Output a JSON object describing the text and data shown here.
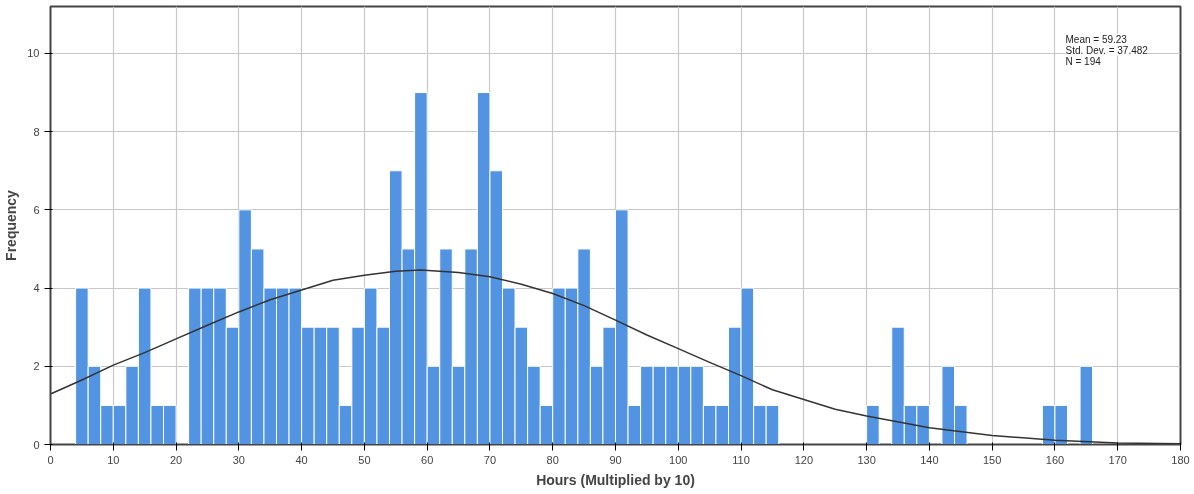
{
  "chart_data": {
    "type": "histogram",
    "xlabel": "Hours (Multiplied by 10)",
    "ylabel": "Frequency",
    "bins": [
      4,
      6,
      8,
      10,
      12,
      14,
      16,
      18,
      20,
      22,
      24,
      26,
      28,
      30,
      32,
      34,
      36,
      38,
      40,
      42,
      44,
      46,
      48,
      50,
      52,
      54,
      56,
      58,
      60,
      62,
      64,
      66,
      68,
      70,
      72,
      74,
      76,
      78,
      80,
      82,
      84,
      86,
      88,
      90,
      92,
      94,
      96,
      98,
      100,
      102,
      104,
      106,
      108,
      110,
      112,
      114,
      116,
      118,
      120,
      122,
      124,
      126,
      128,
      130,
      132,
      134,
      136,
      138,
      140,
      142,
      144,
      146,
      148,
      150,
      152,
      154,
      156,
      158,
      160,
      162,
      164,
      166
    ],
    "values": [
      4,
      2,
      1,
      1,
      2,
      4,
      1,
      1,
      0,
      4,
      4,
      4,
      3,
      6,
      5,
      4,
      4,
      4,
      3,
      3,
      3,
      1,
      3,
      4,
      3,
      7,
      5,
      9,
      2,
      5,
      2,
      5,
      9,
      7,
      4,
      3,
      2,
      1,
      4,
      4,
      5,
      2,
      3,
      6,
      1,
      2,
      2,
      2,
      2,
      2,
      1,
      1,
      3,
      4,
      1,
      1,
      0,
      0,
      0,
      0,
      0,
      0,
      0,
      1,
      0,
      3,
      1,
      1,
      0,
      2,
      1,
      0,
      0,
      0,
      0,
      0,
      0,
      1,
      1,
      0,
      2
    ],
    "color": "#5294e2",
    "series": [
      {
        "type": "line",
        "color": "#333333",
        "x": [
          0,
          5,
          10,
          15,
          20,
          25,
          30,
          35,
          40,
          45,
          50,
          55,
          59,
          65,
          70,
          75,
          80,
          85,
          90,
          95,
          100,
          105,
          110,
          115,
          120,
          125,
          130,
          140,
          150,
          160,
          170,
          180
        ],
        "values": [
          1.29,
          1.65,
          2.03,
          2.35,
          2.7,
          3.05,
          3.39,
          3.7,
          3.95,
          4.2,
          4.33,
          4.43,
          4.46,
          4.4,
          4.29,
          4.1,
          3.86,
          3.55,
          3.18,
          2.8,
          2.45,
          2.1,
          1.76,
          1.4,
          1.15,
          0.9,
          0.73,
          0.43,
          0.23,
          0.11,
          0.04,
          0.02
        ]
      }
    ],
    "annotations": [
      "Mean = 59.23",
      "Std. Dev. = 37.482",
      "N = 194"
    ],
    "xlim": [
      0,
      180
    ],
    "xticks": [
      0,
      10,
      20,
      30,
      40,
      50,
      60,
      70,
      80,
      90,
      100,
      110,
      120,
      130,
      140,
      150,
      160,
      170,
      180
    ],
    "ylim": [
      0,
      11.2
    ],
    "yticks": [
      0,
      2,
      4,
      6,
      8,
      10
    ],
    "grid": true
  }
}
